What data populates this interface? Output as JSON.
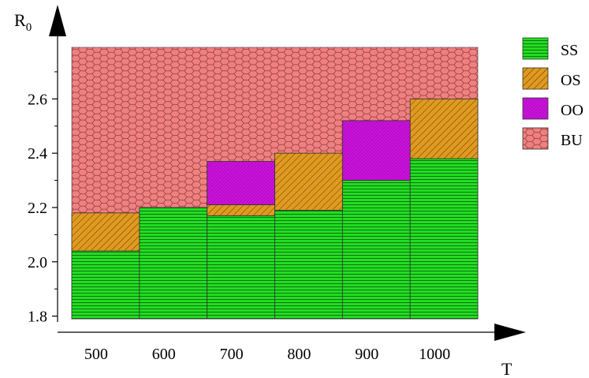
{
  "chart_data": {
    "type": "bar",
    "stacked": true,
    "xlabel": "T",
    "ylabel": "R",
    "ylabel_sub": "0",
    "categories": [
      "500",
      "600",
      "700",
      "800",
      "900",
      "1000"
    ],
    "ylim": [
      1.79,
      2.79
    ],
    "yticks": [
      1.8,
      2.0,
      2.2,
      2.4,
      2.6
    ],
    "ytick_labels": [
      "1.8",
      "2.0",
      "2.2",
      "2.4",
      "2.6"
    ],
    "background_region": {
      "name": "BU",
      "from": 1.79,
      "to": 2.79
    },
    "series": [
      {
        "name": "SS",
        "color": "#22dd22",
        "pattern": "horizontal-lines",
        "ranges": [
          [
            1.79,
            2.04
          ],
          [
            1.79,
            2.2
          ],
          [
            1.79,
            2.17
          ],
          [
            1.79,
            2.19
          ],
          [
            1.79,
            2.3
          ],
          [
            1.79,
            2.38
          ]
        ]
      },
      {
        "name": "OS",
        "color": "#e09a20",
        "pattern": "diagonal-hatch",
        "ranges": [
          [
            2.04,
            2.18
          ],
          [
            2.2,
            2.2
          ],
          [
            2.17,
            2.21
          ],
          [
            2.19,
            2.4
          ],
          [
            2.3,
            2.3
          ],
          [
            2.38,
            2.6
          ]
        ]
      },
      {
        "name": "OO",
        "color": "#cc11dd",
        "pattern": "fine-diagonal",
        "ranges": [
          [
            2.18,
            2.18
          ],
          [
            2.2,
            2.2
          ],
          [
            2.21,
            2.37
          ],
          [
            2.4,
            2.4
          ],
          [
            2.3,
            2.52
          ],
          [
            2.6,
            2.6
          ]
        ]
      },
      {
        "name": "BU",
        "color": "#f08080",
        "pattern": "hexagon",
        "ranges": []
      }
    ],
    "grid": false,
    "legend_position": "right"
  }
}
